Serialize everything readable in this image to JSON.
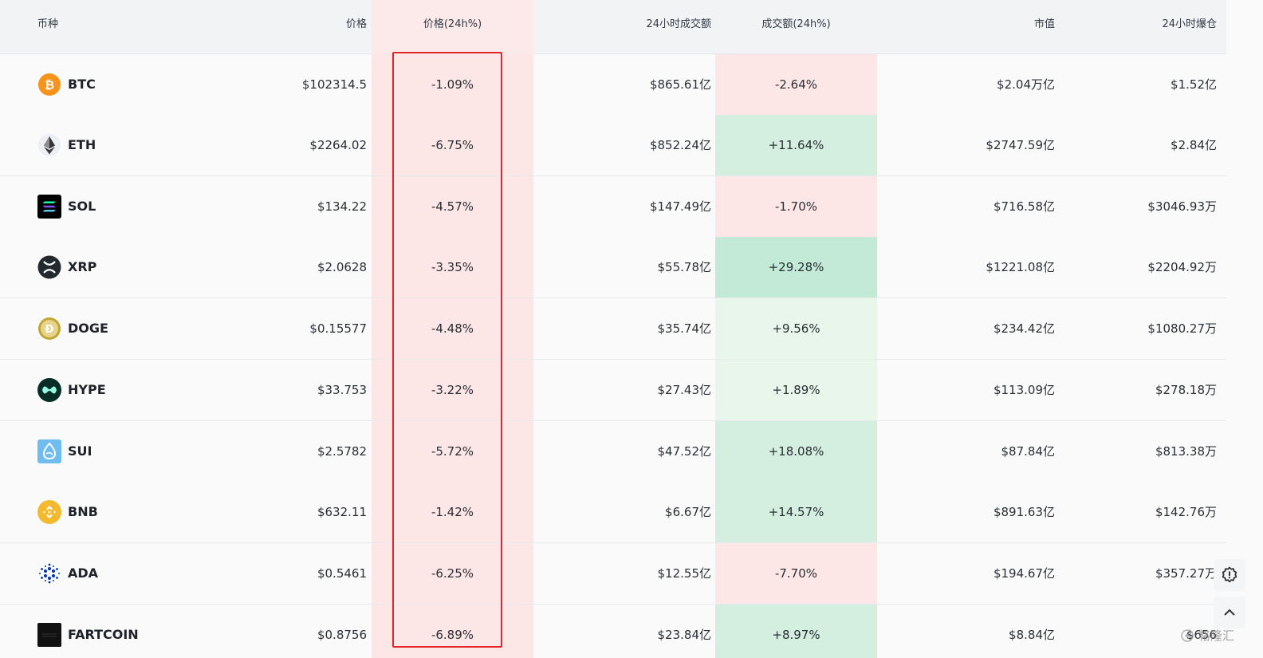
{
  "headers": {
    "coin": "币种",
    "price": "价格",
    "price_change": "价格(24h%)",
    "volume": "24小时成交额",
    "volume_change": "成交额(24h%)",
    "market_cap": "市值",
    "liquidation": "24小时爆仓"
  },
  "rows": [
    {
      "symbol": "BTC",
      "icon": "bitcoin-icon",
      "price": "$102314.5",
      "price_change": "-1.09%",
      "volume": "$865.61亿",
      "volume_change": "-2.64%",
      "market_cap": "$2.04万亿",
      "liquidation": "$1.52亿"
    },
    {
      "symbol": "ETH",
      "icon": "ethereum-icon",
      "price": "$2264.02",
      "price_change": "-6.75%",
      "volume": "$852.24亿",
      "volume_change": "+11.64%",
      "market_cap": "$2747.59亿",
      "liquidation": "$2.84亿"
    },
    {
      "symbol": "SOL",
      "icon": "solana-icon",
      "price": "$134.22",
      "price_change": "-4.57%",
      "volume": "$147.49亿",
      "volume_change": "-1.70%",
      "market_cap": "$716.58亿",
      "liquidation": "$3046.93万"
    },
    {
      "symbol": "XRP",
      "icon": "xrp-icon",
      "price": "$2.0628",
      "price_change": "-3.35%",
      "volume": "$55.78亿",
      "volume_change": "+29.28%",
      "market_cap": "$1221.08亿",
      "liquidation": "$2204.92万"
    },
    {
      "symbol": "DOGE",
      "icon": "dogecoin-icon",
      "price": "$0.15577",
      "price_change": "-4.48%",
      "volume": "$35.74亿",
      "volume_change": "+9.56%",
      "market_cap": "$234.42亿",
      "liquidation": "$1080.27万"
    },
    {
      "symbol": "HYPE",
      "icon": "hyperliquid-icon",
      "price": "$33.753",
      "price_change": "-3.22%",
      "volume": "$27.43亿",
      "volume_change": "+1.89%",
      "market_cap": "$113.09亿",
      "liquidation": "$278.18万"
    },
    {
      "symbol": "SUI",
      "icon": "sui-icon",
      "price": "$2.5782",
      "price_change": "-5.72%",
      "volume": "$47.52亿",
      "volume_change": "+18.08%",
      "market_cap": "$87.84亿",
      "liquidation": "$813.38万"
    },
    {
      "symbol": "BNB",
      "icon": "bnb-icon",
      "price": "$632.11",
      "price_change": "-1.42%",
      "volume": "$6.67亿",
      "volume_change": "+14.57%",
      "market_cap": "$891.63亿",
      "liquidation": "$142.76万"
    },
    {
      "symbol": "ADA",
      "icon": "cardano-icon",
      "price": "$0.5461",
      "price_change": "-6.25%",
      "volume": "$12.55亿",
      "volume_change": "-7.70%",
      "market_cap": "$194.67亿",
      "liquidation": "$357.27万"
    },
    {
      "symbol": "FARTCOIN",
      "icon": "fartcoin-icon",
      "price": "$0.8756",
      "price_change": "-6.89%",
      "volume": "$23.84亿",
      "volume_change": "+8.97%",
      "market_cap": "$8.84亿",
      "liquidation": "$656"
    }
  ],
  "colors": {
    "loss_bg": "#fce6e6",
    "gain_light": "#e8f6ec",
    "gain_mid": "#d4eee0",
    "gain_strong": "#c2ead6",
    "highlight_border": "#e0262b"
  },
  "watermark": "格隆汇"
}
